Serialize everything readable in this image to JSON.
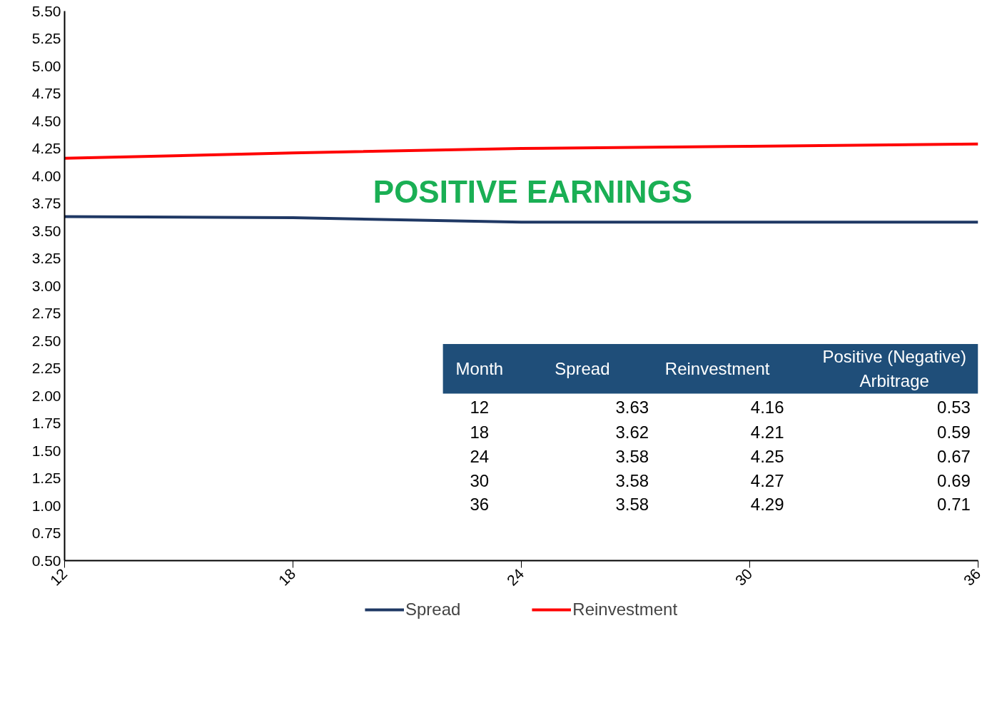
{
  "chart_data": {
    "type": "line",
    "x": [
      12,
      18,
      24,
      30,
      36
    ],
    "xlim": [
      12,
      36
    ],
    "xticks": [
      12,
      18,
      24,
      30,
      36
    ],
    "ylim": [
      0.5,
      5.5
    ],
    "yticks": [
      {
        "value": 0.5,
        "label": "0.50"
      },
      {
        "value": 0.75,
        "label": "0.75"
      },
      {
        "value": 1,
        "label": "1.00"
      },
      {
        "value": 1.25,
        "label": "1.25"
      },
      {
        "value": 1.5,
        "label": "1.50"
      },
      {
        "value": 1.75,
        "label": "1.75"
      },
      {
        "value": 2,
        "label": "2.00"
      },
      {
        "value": 2.25,
        "label": "2.25"
      },
      {
        "value": 2.5,
        "label": "2.50"
      },
      {
        "value": 2.75,
        "label": "2.75"
      },
      {
        "value": 3,
        "label": "3.00"
      },
      {
        "value": 3.25,
        "label": "3.25"
      },
      {
        "value": 3.5,
        "label": "3.50"
      },
      {
        "value": 3.75,
        "label": "3.75"
      },
      {
        "value": 4,
        "label": "4.00"
      },
      {
        "value": 4.25,
        "label": "4.25"
      },
      {
        "value": 4.5,
        "label": "4.50"
      },
      {
        "value": 4.75,
        "label": "4.75"
      },
      {
        "value": 5,
        "label": "5.00"
      },
      {
        "value": 5.25,
        "label": "5.25"
      },
      {
        "value": 5.5,
        "label": "5.50"
      }
    ],
    "series": [
      {
        "name": "Spread",
        "color": "#1f3864",
        "values": [
          3.63,
          3.62,
          3.58,
          3.58,
          3.58
        ]
      },
      {
        "name": "Reinvestment",
        "color": "#ff0000",
        "values": [
          4.16,
          4.21,
          4.25,
          4.27,
          4.29
        ]
      }
    ],
    "annotations": [
      "POSITIVE EARNINGS",
      "Month",
      "Spread",
      "Reinvestment",
      "Positive (Negative) Arbitrage",
      "12",
      "3.63",
      "4.16",
      "0.53",
      "18",
      "3.62",
      "4.21",
      "0.59",
      "24",
      "3.58",
      "4.25",
      "0.67",
      "30",
      "3.58",
      "4.27",
      "0.69",
      "36",
      "3.58",
      "4.29",
      "0.71"
    ],
    "grid": false,
    "legend": "bottom",
    "marker": "none",
    "line_style": "solid"
  }
}
